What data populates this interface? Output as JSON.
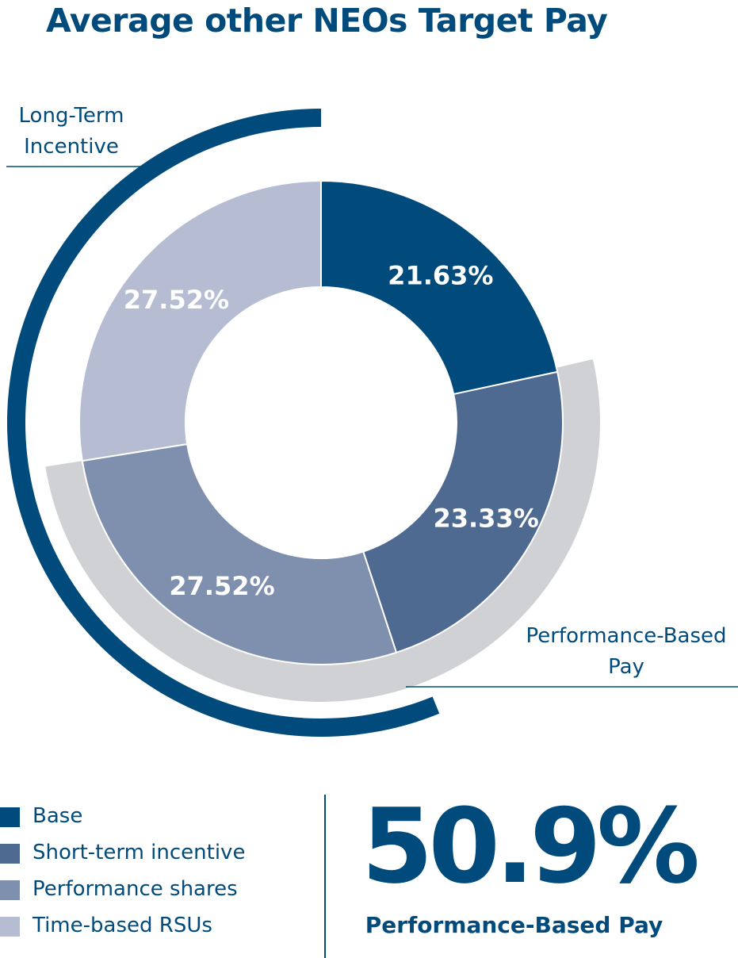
{
  "title": "Average other NEOs Target Pay",
  "chart_data": {
    "type": "pie",
    "categories": [
      "Base",
      "Short-term incentive",
      "Performance shares",
      "Time-based RSUs"
    ],
    "values": [
      21.63,
      23.33,
      27.52,
      27.52
    ],
    "data_labels": [
      "21.63%",
      "23.33%",
      "27.52%",
      "27.52%"
    ],
    "colors": [
      "#004b7c",
      "#4f6a91",
      "#7f8fae",
      "#b6bdd2"
    ],
    "outer_rings": [
      {
        "label_lines": [
          "Long-Term",
          "Incentive"
        ],
        "covers": [
          "Performance shares",
          "Time-based RSUs"
        ],
        "color": "#004b7c"
      },
      {
        "label_lines": [
          "Performance-Based",
          "Pay"
        ],
        "covers": [
          "Short-term incentive",
          "Performance shares"
        ],
        "color": "#d0d1d4"
      }
    ],
    "legend_position": "bottom-left"
  },
  "legend": {
    "items": [
      {
        "label": "Base",
        "color": "#004b7c"
      },
      {
        "label": "Short-term incentive",
        "color": "#4f6a91"
      },
      {
        "label": "Performance shares",
        "color": "#7f8fae"
      },
      {
        "label": "Time-based RSUs",
        "color": "#b6bdd2"
      }
    ]
  },
  "highlight": {
    "value": "50.9%",
    "caption": "Performance-Based Pay"
  }
}
